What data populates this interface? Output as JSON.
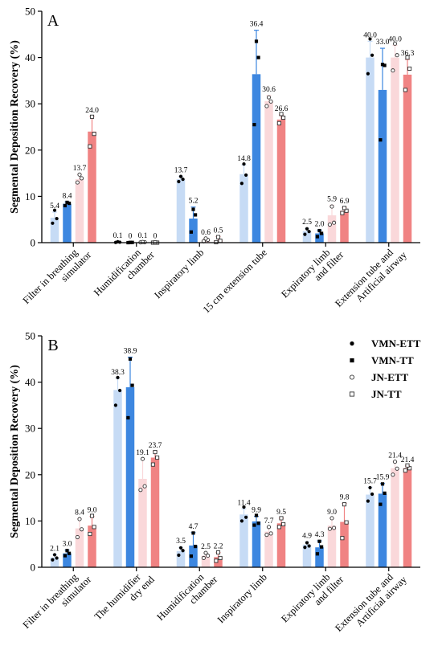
{
  "series_styles": [
    {
      "key": "VMN-ETT",
      "bar_color": "#c6dbf5",
      "marker": "dot"
    },
    {
      "key": "VMN-TT",
      "bar_color": "#3d87e0",
      "marker": "square"
    },
    {
      "key": "JN-ETT",
      "bar_color": "#fad8da",
      "marker": "circle-open"
    },
    {
      "key": "JN-TT",
      "bar_color": "#f08383",
      "marker": "square-open"
    }
  ],
  "chart_data": [
    {
      "type": "bar",
      "panel_label": "A",
      "ylabel": "Segmental Deposition Recovery (%)",
      "ylim": [
        0,
        50
      ],
      "yticks": [
        "0",
        "10",
        "20",
        "30",
        "40",
        "50"
      ],
      "categories": [
        [
          "Filter in breathing",
          "simulator"
        ],
        [
          "Humidification",
          "chamber"
        ],
        [
          "Inspiratory limb"
        ],
        [
          "15 cm extension tube"
        ],
        [
          "Expiratory limb",
          "and filter"
        ],
        [
          "Extension tube and",
          "Artificial airway"
        ]
      ],
      "series": [
        {
          "values": [
            5.4,
            0.1,
            13.7,
            14.8,
            2.5,
            40.0
          ],
          "labels": [
            "5.4",
            "0.1",
            "13.7",
            "14.8",
            "2.5",
            "40.0"
          ],
          "errors": [
            1.2,
            0.1,
            0.6,
            2.0,
            0.6,
            3.5
          ],
          "points": [
            [
              4.2,
              5.2,
              7.0
            ],
            [
              0.05,
              0.1,
              0.2
            ],
            [
              13.2,
              13.7,
              14.3
            ],
            [
              12.8,
              14.6,
              17.0
            ],
            [
              1.8,
              2.4,
              3.0
            ],
            [
              36.5,
              40.5,
              44.0
            ]
          ]
        },
        {
          "values": [
            8.4,
            0,
            5.2,
            36.4,
            2.0,
            33.0
          ],
          "labels": [
            "8.4",
            "0",
            "5.2",
            "36.4",
            "2.0",
            "33.0"
          ],
          "errors": [
            0.4,
            0.1,
            2.5,
            9.5,
            0.7,
            9.0
          ],
          "points": [
            [
              8.0,
              8.5,
              8.7
            ],
            [
              0,
              0.05,
              0.05
            ],
            [
              2.3,
              6.0,
              7.2
            ],
            [
              25.5,
              40.0,
              43.5
            ],
            [
              1.3,
              2.0,
              2.6
            ],
            [
              22.2,
              38.3,
              38.5
            ]
          ]
        },
        {
          "values": [
            13.7,
            0.1,
            0.6,
            30.6,
            5.9,
            40.0
          ],
          "labels": [
            "13.7",
            "0.1",
            "0.6",
            "30.6",
            "5.9",
            "40.0"
          ],
          "errors": [
            1.1,
            0.1,
            0.3,
            1.2,
            2.2,
            2.6
          ],
          "points": [
            [
              13.0,
              13.9,
              14.7
            ],
            [
              0.05,
              0.1,
              0.15
            ],
            [
              0.3,
              0.6,
              0.9
            ],
            [
              29.5,
              30.5,
              31.4
            ],
            [
              3.9,
              4.3,
              7.8
            ],
            [
              37.2,
              40.5,
              43.0
            ]
          ]
        },
        {
          "values": [
            24.0,
            0,
            0.5,
            26.6,
            6.9,
            36.3
          ],
          "labels": [
            "24.0",
            "0",
            "0.5",
            "26.6",
            "6.9",
            "36.3"
          ],
          "errors": [
            3.3,
            0.1,
            0.8,
            1.0,
            0.7,
            3.3
          ],
          "points": [
            [
              20.8,
              23.5,
              27.2
            ],
            [
              0,
              0,
              0.05
            ],
            [
              0.1,
              0.4,
              1.2
            ],
            [
              25.8,
              27.0,
              27.8
            ],
            [
              6.4,
              6.9,
              7.5
            ],
            [
              33.0,
              37.6,
              40.0
            ]
          ]
        }
      ]
    },
    {
      "type": "bar",
      "panel_label": "B",
      "ylabel": "Segmental Deposition Recovery (%)",
      "ylim": [
        0,
        50
      ],
      "yticks": [
        "0",
        "10",
        "20",
        "30",
        "40",
        "50"
      ],
      "categories": [
        [
          "Filter in breathing",
          "simulator"
        ],
        [
          "The humidifier",
          "dry end"
        ],
        [
          "Humidification",
          "chamber"
        ],
        [
          "Inspiratory limb"
        ],
        [
          "Expiratory limb",
          "and filter"
        ],
        [
          "Extension tube and",
          "Artificial airway"
        ]
      ],
      "legend": {
        "placement": "top-right",
        "entries": [
          "VMN-ETT",
          "VMN-TT",
          "JN-ETT",
          "JN-TT"
        ]
      },
      "series": [
        {
          "name": "VMN-ETT",
          "values": [
            2.1,
            38.3,
            3.5,
            11.4,
            4.9,
            15.7
          ],
          "labels": [
            "2.1",
            "38.3",
            "3.5",
            "11.4",
            "4.9",
            "15.7"
          ],
          "errors": [
            0.6,
            2.5,
            0.8,
            1.2,
            0.6,
            1.6
          ],
          "points": [
            [
              1.6,
              2.0,
              2.7
            ],
            [
              35.0,
              38.2,
              41.0
            ],
            [
              2.6,
              3.6,
              4.2
            ],
            [
              10.0,
              10.8,
              13.0
            ],
            [
              4.3,
              4.6,
              5.3
            ],
            [
              14.3,
              15.8,
              17.2
            ]
          ]
        },
        {
          "name": "VMN-TT",
          "values": [
            3.0,
            38.9,
            4.7,
            9.9,
            4.3,
            15.9
          ],
          "labels": [
            "3.0",
            "38.9",
            "4.7",
            "9.9",
            "4.3",
            "15.9"
          ],
          "errors": [
            0.7,
            6.5,
            2.8,
            1.1,
            1.4,
            2.2
          ],
          "points": [
            [
              2.5,
              3.0,
              3.6
            ],
            [
              32.3,
              39.3,
              45.0
            ],
            [
              2.4,
              4.5,
              7.4
            ],
            [
              9.1,
              9.5,
              11.2
            ],
            [
              2.9,
              4.4,
              5.6
            ],
            [
              13.6,
              16.0,
              18.0
            ]
          ]
        },
        {
          "name": "JN-ETT",
          "values": [
            8.4,
            19.1,
            2.5,
            7.7,
            9.0,
            21.4
          ],
          "labels": [
            "8.4",
            "19.1",
            "2.5",
            "7.7",
            "9.0",
            "21.4"
          ],
          "errors": [
            2.1,
            4.3,
            0.6,
            1.0,
            1.6,
            1.4
          ],
          "points": [
            [
              6.5,
              8.2,
              10.4
            ],
            [
              16.7,
              17.5,
              23.4
            ],
            [
              2.0,
              2.5,
              3.1
            ],
            [
              7.0,
              7.3,
              8.7
            ],
            [
              8.3,
              8.5,
              10.6
            ],
            [
              20.0,
              21.3,
              22.8
            ]
          ]
        },
        {
          "name": "JN-TT",
          "values": [
            9.0,
            23.7,
            2.2,
            9.5,
            9.8,
            21.4
          ],
          "labels": [
            "9.0",
            "23.7",
            "2.2",
            "9.5",
            "9.8",
            "21.4"
          ],
          "errors": [
            2.0,
            1.3,
            1.0,
            1.1,
            4.0,
            0.5
          ],
          "points": [
            [
              7.2,
              8.7,
              11.1
            ],
            [
              22.2,
              23.7,
              24.9
            ],
            [
              1.4,
              2.0,
              3.2
            ],
            [
              8.7,
              9.3,
              10.6
            ],
            [
              6.3,
              9.7,
              13.6
            ],
            [
              20.9,
              21.4,
              22.0
            ]
          ]
        }
      ]
    }
  ]
}
